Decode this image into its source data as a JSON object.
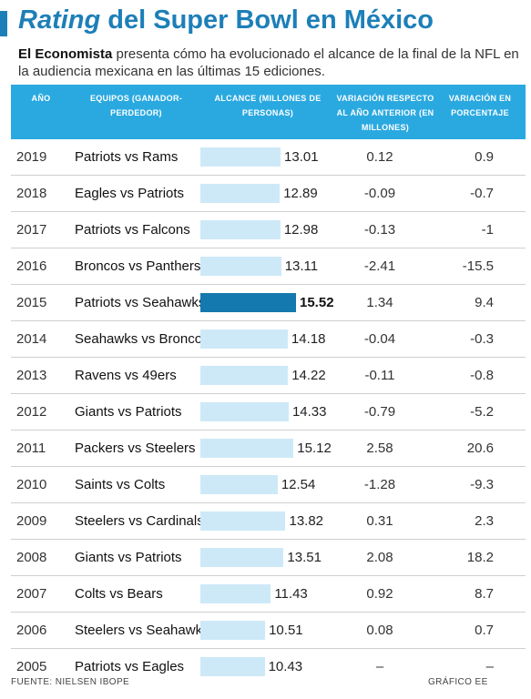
{
  "title": {
    "italic": "Rating",
    "rest": "del Super Bowl en México"
  },
  "subtitle": {
    "source": "El Economista",
    "text": "presenta cómo ha evolucionado el alcance de la final de la NFL en la audiencia mexicana en las últimas 15 ediciones."
  },
  "headers": {
    "year": "AÑO",
    "teams": "EQUIPOS (GANADOR-PERDEDOR)",
    "reach": "ALCANCE (MILLONES DE PERSONAS)",
    "variation": "VARIACIÓN RESPECTO AL AÑO ANTERIOR (EN MILLONES)",
    "pct": "VARIACIÓN EN PORCENTAJE"
  },
  "footer": {
    "source": "FUENTE: NIELSEN IBOPE",
    "credit": "GRÁFICO EE"
  },
  "colors": {
    "accent": "#1d7fb8",
    "header_bg": "#2aa9e0",
    "bar": "#cde9f8",
    "bar_highlight": "#1479ae"
  },
  "chart_data": {
    "type": "table",
    "highlight_year": "2015",
    "rows": [
      {
        "year": "2019",
        "teams": "Patriots vs Rams",
        "reach": 13.01,
        "reach_label": "13.01",
        "variation": "0.12",
        "pct": "0.9"
      },
      {
        "year": "2018",
        "teams": "Eagles vs Patriots",
        "reach": 12.89,
        "reach_label": "12.89",
        "variation": "-0.09",
        "pct": "-0.7"
      },
      {
        "year": "2017",
        "teams": "Patriots vs Falcons",
        "reach": 12.98,
        "reach_label": "12.98",
        "variation": "-0.13",
        "pct": "-1"
      },
      {
        "year": "2016",
        "teams": "Broncos vs Panthers",
        "reach": 13.11,
        "reach_label": "13.11",
        "variation": "-2.41",
        "pct": "-15.5"
      },
      {
        "year": "2015",
        "teams": "Patriots vs Seahawks",
        "reach": 15.52,
        "reach_label": "15.52",
        "variation": "1.34",
        "pct": "9.4"
      },
      {
        "year": "2014",
        "teams": "Seahawks vs Broncos",
        "reach": 14.18,
        "reach_label": "14.18",
        "variation": "-0.04",
        "pct": "-0.3"
      },
      {
        "year": "2013",
        "teams": "Ravens vs 49ers",
        "reach": 14.22,
        "reach_label": "14.22",
        "variation": "-0.11",
        "pct": "-0.8"
      },
      {
        "year": "2012",
        "teams": "Giants vs Patriots",
        "reach": 14.33,
        "reach_label": "14.33",
        "variation": "-0.79",
        "pct": "-5.2"
      },
      {
        "year": "2011",
        "teams": "Packers vs Steelers",
        "reach": 15.12,
        "reach_label": "15.12",
        "variation": "2.58",
        "pct": "20.6"
      },
      {
        "year": "2010",
        "teams": "Saints vs Colts",
        "reach": 12.54,
        "reach_label": "12.54",
        "variation": "-1.28",
        "pct": "-9.3"
      },
      {
        "year": "2009",
        "teams": "Steelers vs Cardinals",
        "reach": 13.82,
        "reach_label": "13.82",
        "variation": "0.31",
        "pct": "2.3"
      },
      {
        "year": "2008",
        "teams": "Giants vs Patriots",
        "reach": 13.51,
        "reach_label": "13.51",
        "variation": "2.08",
        "pct": "18.2"
      },
      {
        "year": "2007",
        "teams": "Colts vs Bears",
        "reach": 11.43,
        "reach_label": "11.43",
        "variation": "0.92",
        "pct": "8.7"
      },
      {
        "year": "2006",
        "teams": "Steelers vs Seahawks",
        "reach": 10.51,
        "reach_label": "10.51",
        "variation": "0.08",
        "pct": "0.7"
      },
      {
        "year": "2005",
        "teams": "Patriots vs Eagles",
        "reach": 10.43,
        "reach_label": "10.43",
        "variation": "–",
        "pct": "–"
      }
    ]
  }
}
